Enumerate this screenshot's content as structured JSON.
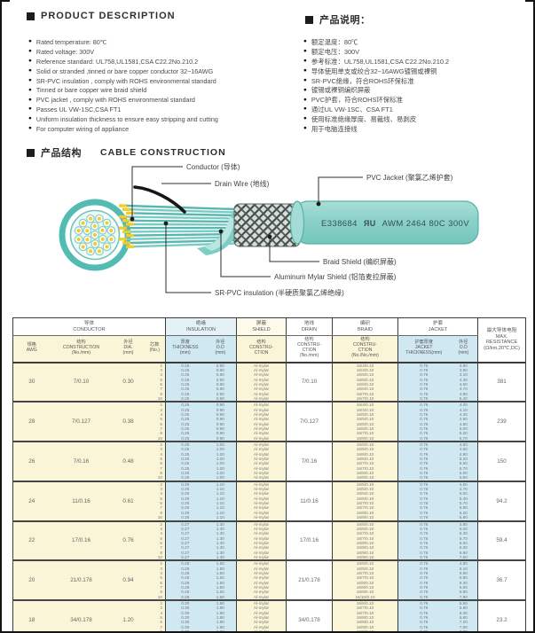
{
  "product_description": {
    "heading": "PRODUCT DESCRIPTION",
    "items": [
      "Rated temperature: 80℃",
      "Rated voltage: 300V",
      "Reference standard: UL758,UL1581,CSA C22.2No.210.2",
      "Solid or stranded ,tinned or bare copper conductor 32~16AWG",
      "SR-PVC insulation , comply with ROHS environmental standard",
      "Tinned or bare copper wire braid shield",
      "PVC jacket , comply with ROHS environmental standard",
      "Passes UL VW-1SC,CSA FT1",
      "Uniform insulation thickness to ensure easy stripping and cutting",
      "For computer wiring of appliance"
    ]
  },
  "product_description_zh": {
    "heading": "产品说明：",
    "items": [
      "额定温度：80℃",
      "额定电压：300V",
      "参考标准：UL758,UL1581,CSA C22.2No.210.2",
      "导体使用单支或绞合32~16AWG镀锡或裸铜",
      "SR-PVC绝缘，符合ROHS环保标准",
      "镀锡或裸铜编织屏蔽",
      "PVC护套，符合ROHS环保标准",
      "通过UL VW-1SC、CSA FT1",
      "使用标准绝缘厚度、易裁线、易剥皮",
      "用于电脑连接线"
    ]
  },
  "construction": {
    "heading_zh": "产品结构",
    "heading_en": "CABLE CONSTRUCTION",
    "labels": {
      "conductor": "Conductor (导体)",
      "drain": "Drain Wire (地线)",
      "pvc_jacket": "PVC Jacket (聚氯乙烯护套)",
      "braid": "Braid Shield (编织屏蔽)",
      "mylar": "Aluminum Mylar Shield (铝箔麦拉屏蔽)",
      "sr_pvc": "SR-PVC insulation (半硬质聚氯乙烯绝缘)"
    },
    "jacket_print": {
      "cert": "E338684",
      "mark": "ЯU",
      "spec": "AWM 2464 80C 300V"
    }
  },
  "colors": {
    "cable_teal": "#6FC4BB",
    "conductor_yellow": "#F1CB30",
    "table_yellow": "#FBF5D8",
    "table_blue": "#CFE8F2"
  },
  "table": {
    "groups": [
      {
        "zh": "导体",
        "en": "CONDUCTOR"
      },
      {
        "zh": "绝缘",
        "en": "INSULATION"
      },
      {
        "zh": "屏蔽",
        "en": "SHIELD"
      },
      {
        "zh": "地线",
        "en": "DRAIN"
      },
      {
        "zh": "编织",
        "en": "BRAID"
      },
      {
        "zh": "护套",
        "en": "JACKET"
      }
    ],
    "columns": [
      {
        "zh": "规格",
        "en": "AWG",
        "unit": ""
      },
      {
        "zh": "结构",
        "en": "CONSTRUCTION",
        "unit": "(No./mm)"
      },
      {
        "zh": "外径",
        "en": "DIA.",
        "unit": "(mm)"
      },
      {
        "zh": "芯数",
        "en": "",
        "unit": "(No.)"
      },
      {
        "zh": "厚度",
        "en": "THICKNESS",
        "unit": "(mm)"
      },
      {
        "zh": "外径",
        "en": "O.D",
        "unit": "(mm)"
      },
      {
        "zh": "结构",
        "en": "CONSTRU-\nCTION",
        "unit": ""
      },
      {
        "zh": "结构",
        "en": "CONSTRU-\nCTION",
        "unit": "(No./mm)"
      },
      {
        "zh": "结构",
        "en": "CONSTRU-\nCTION",
        "unit": "(No./No./mm)"
      },
      {
        "zh": "护套厚度",
        "en": "JACKET\nTHICKNESS(mm)",
        "unit": ""
      },
      {
        "zh": "外径",
        "en": "O.D",
        "unit": "(mm)"
      }
    ],
    "resistance_header": {
      "zh": "最大导体电阻",
      "en": "MAX.\nRESISTANCE",
      "unit": "(Ω/km,20℃,DC)"
    },
    "rows": [
      {
        "awg": "30",
        "construction": "7/0.10",
        "dia": "0.30",
        "cores": [
          "2",
          "3",
          "4",
          "5",
          "6",
          "7",
          "8",
          "10"
        ],
        "ins_thk": [
          "0.25",
          "0.25",
          "0.25",
          "0.25",
          "0.25",
          "0.25",
          "0.25",
          "0.25"
        ],
        "ins_od": [
          "0.80",
          "0.80",
          "0.80",
          "0.80",
          "0.80",
          "0.80",
          "0.80",
          "0.80"
        ],
        "shield": [
          "Al-mylar",
          "Al-mylar",
          "Al-mylar",
          "Al-mylar",
          "Al-mylar",
          "Al-mylar",
          "Al-mylar",
          "Al-mylar"
        ],
        "drain": "7/0.10",
        "braid": [
          "16/4/0.10",
          "16/4/0.10",
          "16/5/0.10",
          "16/5/0.10",
          "16/6/0.10",
          "16/6/0.10",
          "16/7/0.10",
          "16/7/0.10"
        ],
        "jkt_thk": [
          "0.76",
          "0.76",
          "0.76",
          "0.76",
          "0.76",
          "0.76",
          "0.76",
          "0.76"
        ],
        "jkt_od": [
          "3.80",
          "3.90",
          "4.10",
          "4.30",
          "4.50",
          "4.70",
          "4.90",
          "5.40"
        ],
        "res": "381"
      },
      {
        "awg": "28",
        "construction": "7/0.127",
        "dia": "0.38",
        "cores": [
          "2",
          "3",
          "4",
          "5",
          "6",
          "7",
          "8",
          "10"
        ],
        "ins_thk": [
          "0.25",
          "0.25",
          "0.25",
          "0.25",
          "0.25",
          "0.25",
          "0.25",
          "0.25"
        ],
        "ins_od": [
          "0.90",
          "0.90",
          "0.90",
          "0.90",
          "0.90",
          "0.90",
          "0.90",
          "0.90"
        ],
        "shield": [
          "Al-mylar",
          "Al-mylar",
          "Al-mylar",
          "Al-mylar",
          "Al-mylar",
          "Al-mylar",
          "Al-mylar",
          "Al-mylar"
        ],
        "drain": "7/0.127",
        "braid": [
          "16/4/0.10",
          "16/4/0.10",
          "16/5/0.10",
          "16/5/0.10",
          "16/6/0.10",
          "16/6/0.10",
          "16/7/0.10",
          "16/8/0.10"
        ],
        "jkt_thk": [
          "0.76",
          "0.76",
          "0.76",
          "0.76",
          "0.76",
          "0.76",
          "0.76",
          "0.76"
        ],
        "jkt_od": [
          "4.00",
          "4.10",
          "4.30",
          "4.60",
          "4.80",
          "5.00",
          "5.20",
          "5.70"
        ],
        "res": "239"
      },
      {
        "awg": "26",
        "construction": "7/0.16",
        "dia": "0.48",
        "cores": [
          "2",
          "3",
          "4",
          "5",
          "6",
          "7",
          "8",
          "10"
        ],
        "ins_thk": [
          "0.25",
          "0.25",
          "0.25",
          "0.25",
          "0.25",
          "0.25",
          "0.25",
          "0.25"
        ],
        "ins_od": [
          "1.00",
          "1.00",
          "1.00",
          "1.00",
          "1.00",
          "1.00",
          "1.00",
          "1.00"
        ],
        "shield": [
          "Al-mylar",
          "Al-mylar",
          "Al-mylar",
          "Al-mylar",
          "Al-mylar",
          "Al-mylar",
          "Al-mylar",
          "Al-mylar"
        ],
        "drain": "7/0.16",
        "braid": [
          "16/5/0.10",
          "16/5/0.10",
          "16/6/0.10",
          "16/6/0.10",
          "16/7/0.10",
          "16/7/0.10",
          "16/8/0.10",
          "16/8/0.10"
        ],
        "jkt_thk": [
          "0.76",
          "0.76",
          "0.76",
          "0.76",
          "0.76",
          "0.76",
          "0.76",
          "0.76"
        ],
        "jkt_od": [
          "4.50",
          "4.60",
          "4.90",
          "5.20",
          "5.50",
          "5.70",
          "6.00",
          "6.50"
        ],
        "res": "150"
      },
      {
        "awg": "24",
        "construction": "11/0.16",
        "dia": "0.61",
        "cores": [
          "2",
          "3",
          "4",
          "5",
          "6",
          "7",
          "8",
          "10"
        ],
        "ins_thk": [
          "0.25",
          "0.25",
          "0.25",
          "0.25",
          "0.25",
          "0.25",
          "0.25",
          "0.25"
        ],
        "ins_od": [
          "1.10",
          "1.10",
          "1.10",
          "1.10",
          "1.10",
          "1.10",
          "1.10",
          "1.10"
        ],
        "shield": [
          "Al-mylar",
          "Al-mylar",
          "Al-mylar",
          "Al-mylar",
          "Al-mylar",
          "Al-mylar",
          "Al-mylar",
          "Al-mylar"
        ],
        "drain": "11/0.16",
        "braid": [
          "16/5/0.10",
          "16/5/0.10",
          "16/6/0.10",
          "16/6/0.10",
          "16/7/0.10",
          "16/7/0.10",
          "16/8/0.10",
          "16/9/0.10"
        ],
        "jkt_thk": [
          "0.76",
          "0.76",
          "0.76",
          "0.76",
          "0.76",
          "0.76",
          "0.76",
          "0.76"
        ],
        "jkt_od": [
          "4.50",
          "4.70",
          "5.00",
          "5.40",
          "5.70",
          "5.90",
          "6.20",
          "6.80"
        ],
        "res": "94.2"
      },
      {
        "awg": "22",
        "construction": "17/0.16",
        "dia": "0.76",
        "cores": [
          "2",
          "3",
          "4",
          "5",
          "6",
          "7",
          "8",
          "10"
        ],
        "ins_thk": [
          "0.27",
          "0.27",
          "0.27",
          "0.27",
          "0.27",
          "0.27",
          "0.27",
          "0.27"
        ],
        "ins_od": [
          "1.30",
          "1.30",
          "1.30",
          "1.30",
          "1.30",
          "1.30",
          "1.30",
          "1.30"
        ],
        "shield": [
          "Al-mylar",
          "Al-mylar",
          "Al-mylar",
          "Al-mylar",
          "Al-mylar",
          "Al-mylar",
          "Al-mylar",
          "Al-mylar"
        ],
        "drain": "17/0.16",
        "braid": [
          "16/6/0.10",
          "16/6/0.10",
          "16/7/0.10",
          "16/7/0.10",
          "16/8/0.10",
          "16/8/0.10",
          "16/9/0.10",
          "16/9/0.10"
        ],
        "jkt_thk": [
          "0.76",
          "0.76",
          "0.76",
          "0.76",
          "0.76",
          "0.76",
          "0.76",
          "0.76"
        ],
        "jkt_od": [
          "4.80",
          "5.00",
          "5.30",
          "5.70",
          "6.00",
          "6.30",
          "6.50",
          "7.50"
        ],
        "res": "59.4"
      },
      {
        "awg": "20",
        "construction": "21/0.178",
        "dia": "0.94",
        "cores": [
          "2",
          "3",
          "4",
          "5",
          "6",
          "7",
          "8",
          "10"
        ],
        "ins_thk": [
          "0.28",
          "0.28",
          "0.28",
          "0.28",
          "0.28",
          "0.28",
          "0.28",
          "0.28"
        ],
        "ins_od": [
          "1.50",
          "1.50",
          "1.50",
          "1.50",
          "1.50",
          "1.50",
          "1.50",
          "1.50"
        ],
        "shield": [
          "Al-mylar",
          "Al-mylar",
          "Al-mylar",
          "Al-mylar",
          "Al-mylar",
          "Al-mylar",
          "Al-mylar",
          "Al-mylar"
        ],
        "drain": "21/0.178",
        "braid": [
          "16/6/0.10",
          "16/6/0.10",
          "16/7/0.10",
          "16/7/0.10",
          "16/8/0.10",
          "16/8/0.10",
          "16/9/0.10",
          "16/10/0.10"
        ],
        "jkt_thk": [
          "0.76",
          "0.76",
          "0.76",
          "0.76",
          "0.76",
          "0.76",
          "0.76",
          "0.76"
        ],
        "jkt_od": [
          "4.80",
          "5.10",
          "5.50",
          "5.90",
          "6.30",
          "6.60",
          "6.90",
          "7.90"
        ],
        "res": "36.7"
      },
      {
        "awg": "18",
        "construction": "34/0.178",
        "dia": "1.20",
        "cores": [
          "2",
          "3",
          "4",
          "5",
          "6",
          "7",
          "8",
          "10"
        ],
        "ins_thk": [
          "0.30",
          "0.30",
          "0.30",
          "0.30",
          "0.30",
          "0.30",
          "0.30",
          "0.30"
        ],
        "ins_od": [
          "1.80",
          "1.80",
          "1.80",
          "1.80",
          "1.80",
          "1.80",
          "1.80",
          "1.80"
        ],
        "shield": [
          "Al-mylar",
          "Al-mylar",
          "Al-mylar",
          "Al-mylar",
          "Al-mylar",
          "Al-mylar",
          "Al-mylar",
          "Al-mylar"
        ],
        "drain": "34/0.178",
        "braid": [
          "16/6/0.10",
          "16/7/0.10",
          "16/7/0.10",
          "16/8/0.10",
          "16/8/0.10",
          "16/9/0.10",
          "16/9/0.10",
          "16/10/0.10"
        ],
        "jkt_thk": [
          "0.76",
          "0.76",
          "0.76",
          "0.76",
          "0.76",
          "0.76",
          "0.76",
          "0.76"
        ],
        "jkt_od": [
          "5.50",
          "5.80",
          "6.30",
          "6.80",
          "7.20",
          "7.60",
          "8.00",
          "9.20"
        ],
        "res": "23.2"
      }
    ]
  }
}
